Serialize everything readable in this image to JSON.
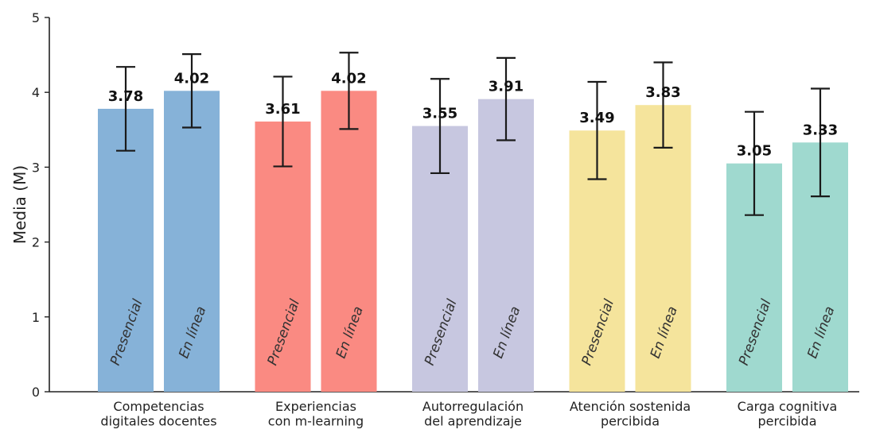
{
  "chart_data": {
    "type": "bar",
    "ylabel": "Media (M)",
    "xlabel": "",
    "title": "",
    "ylim": [
      0,
      5
    ],
    "yticks": [
      0,
      1,
      2,
      3,
      4,
      5
    ],
    "categories": [
      [
        "Competencias",
        "digitales docentes"
      ],
      [
        "Experiencias",
        "con m-learning"
      ],
      [
        "Autorregulación",
        "del aprendizaje"
      ],
      [
        "Atención sostenida",
        "percibida"
      ],
      [
        "Carga cognitiva",
        "percibida"
      ]
    ],
    "series": [
      {
        "name": "Presencial",
        "values": [
          3.78,
          3.61,
          3.55,
          3.49,
          3.05
        ],
        "error": [
          0.56,
          0.6,
          0.63,
          0.65,
          0.69
        ]
      },
      {
        "name": "En línea",
        "values": [
          4.02,
          4.02,
          3.91,
          3.83,
          3.33
        ],
        "error": [
          0.49,
          0.51,
          0.55,
          0.57,
          0.72
        ]
      }
    ],
    "value_labels": [
      [
        "3.78",
        "4.02"
      ],
      [
        "3.61",
        "4.02"
      ],
      [
        "3.55",
        "3.91"
      ],
      [
        "3.49",
        "3.83"
      ],
      [
        "3.05",
        "3.33"
      ]
    ],
    "colors": [
      "#86b2d8",
      "#fa8a82",
      "#c7c7e0",
      "#f5e49c",
      "#9fd9cf"
    ],
    "grid": false,
    "legend": "none"
  }
}
